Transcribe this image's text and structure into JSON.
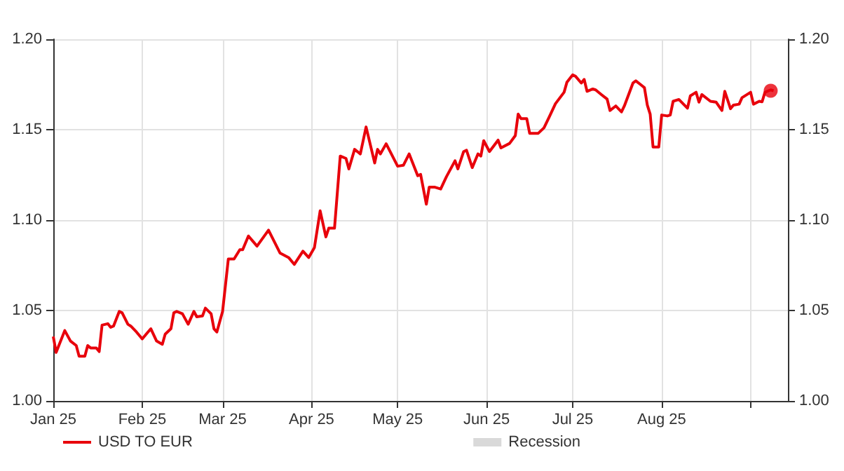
{
  "chart_data": {
    "type": "line",
    "legend": "bottom left",
    "grid": true,
    "line_style": "solid",
    "xlim": [
      "2025-01-01",
      "2025-09-14"
    ],
    "xticks": [
      {
        "value": "2025-01-01",
        "label": "Jan 25"
      },
      {
        "value": "2025-02-01",
        "label": "Feb 25"
      },
      {
        "value": "2025-03-01",
        "label": "Mar 25"
      },
      {
        "value": "2025-04-01",
        "label": "Apr 25"
      },
      {
        "value": "2025-05-01",
        "label": "May 25"
      },
      {
        "value": "2025-06-01",
        "label": "Jun 25"
      },
      {
        "value": "2025-07-01",
        "label": "Jul 25"
      },
      {
        "value": "2025-08-01",
        "label": "Aug 25"
      },
      {
        "value": "2025-09-01",
        "label": null
      }
    ],
    "ylim": [
      1.0,
      1.2
    ],
    "yticks": [
      {
        "value": 1.0,
        "label": "1.00"
      },
      1.05,
      {
        "value": 1.1,
        "label": "1.10"
      },
      1.15,
      {
        "value": 1.2,
        "label": "1.20"
      }
    ],
    "y2lim": [
      1.0,
      1.2
    ],
    "y2ticks": [
      {
        "value": 1.0,
        "label": "1.00"
      },
      1.05,
      {
        "value": 1.1,
        "label": "1.10"
      },
      1.15,
      {
        "value": 1.2,
        "label": "1.20"
      }
    ],
    "series": [
      {
        "name": "USD TO EUR",
        "color": "#e8000b",
        "marker": "none",
        "x": [
          "2025-01-01",
          "2025-01-02",
          "2025-01-05",
          "2025-01-07",
          "2025-01-09",
          "2025-01-10",
          "2025-01-12",
          "2025-01-13",
          "2025-01-14",
          "2025-01-16",
          "2025-01-17",
          "2025-01-18",
          "2025-01-20",
          "2025-01-21",
          "2025-01-22",
          "2025-01-24",
          "2025-01-25",
          "2025-01-27",
          "2025-01-28",
          "2025-01-30",
          "2025-02-01",
          "2025-02-03",
          "2025-02-04",
          "2025-02-06",
          "2025-02-08",
          "2025-02-09",
          "2025-02-11",
          "2025-02-12",
          "2025-02-13",
          "2025-02-15",
          "2025-02-17",
          "2025-02-19",
          "2025-02-20",
          "2025-02-22",
          "2025-02-23",
          "2025-02-25",
          "2025-02-26",
          "2025-02-27",
          "2025-03-01",
          "2025-03-03",
          "2025-03-05",
          "2025-03-07",
          "2025-03-08",
          "2025-03-10",
          "2025-03-13",
          "2025-03-17",
          "2025-03-21",
          "2025-03-24",
          "2025-03-26",
          "2025-03-29",
          "2025-03-31",
          "2025-04-02",
          "2025-04-04",
          "2025-04-06",
          "2025-04-07",
          "2025-04-09",
          "2025-04-11",
          "2025-04-13",
          "2025-04-14",
          "2025-04-16",
          "2025-04-18",
          "2025-04-20",
          "2025-04-23",
          "2025-04-24",
          "2025-04-25",
          "2025-04-27",
          "2025-05-01",
          "2025-05-03",
          "2025-05-05",
          "2025-05-08",
          "2025-05-09",
          "2025-05-11",
          "2025-05-12",
          "2025-05-14",
          "2025-05-16",
          "2025-05-18",
          "2025-05-21",
          "2025-05-22",
          "2025-05-24",
          "2025-05-25",
          "2025-05-27",
          "2025-05-29",
          "2025-05-30",
          "2025-05-31",
          "2025-06-02",
          "2025-06-05",
          "2025-06-06",
          "2025-06-09",
          "2025-06-11",
          "2025-06-12",
          "2025-06-13",
          "2025-06-15",
          "2025-06-16",
          "2025-06-19",
          "2025-06-21",
          "2025-06-23",
          "2025-06-25",
          "2025-06-28",
          "2025-06-29",
          "2025-07-01",
          "2025-07-02",
          "2025-07-04",
          "2025-07-05",
          "2025-07-06",
          "2025-07-08",
          "2025-07-09",
          "2025-07-11",
          "2025-07-13",
          "2025-07-14",
          "2025-07-16",
          "2025-07-18",
          "2025-07-19",
          "2025-07-22",
          "2025-07-23",
          "2025-07-25",
          "2025-07-26",
          "2025-07-27",
          "2025-07-28",
          "2025-07-29",
          "2025-07-31",
          "2025-08-01",
          "2025-08-03",
          "2025-08-04",
          "2025-08-05",
          "2025-08-07",
          "2025-08-10",
          "2025-08-11",
          "2025-08-13",
          "2025-08-14",
          "2025-08-15",
          "2025-08-18",
          "2025-08-20",
          "2025-08-22",
          "2025-08-23",
          "2025-08-25",
          "2025-08-26",
          "2025-08-28",
          "2025-08-29",
          "2025-09-01",
          "2025-09-02",
          "2025-09-04",
          "2025-09-05",
          "2025-09-06",
          "2025-09-08",
          "2025-09-09"
        ],
        "values": [
          1.0356,
          1.0268,
          1.0389,
          1.0331,
          1.0306,
          1.0247,
          1.0247,
          1.0306,
          1.0293,
          1.0293,
          1.0273,
          1.0419,
          1.0427,
          1.0407,
          1.0414,
          1.0495,
          1.0487,
          1.0424,
          1.0414,
          1.0381,
          1.0343,
          1.0381,
          1.0399,
          1.0331,
          1.0313,
          1.0369,
          1.0399,
          1.0487,
          1.0495,
          1.0482,
          1.0424,
          1.0495,
          1.0465,
          1.047,
          1.0513,
          1.0482,
          1.0399,
          1.0381,
          1.0495,
          1.0785,
          1.0785,
          1.0836,
          1.0836,
          1.0912,
          1.0856,
          1.0944,
          1.0818,
          1.0793,
          1.0755,
          1.0828,
          1.0793,
          1.0848,
          1.1051,
          1.0907,
          1.0955,
          1.0955,
          1.1354,
          1.1341,
          1.1283,
          1.1391,
          1.1366,
          1.1515,
          1.1316,
          1.1391,
          1.1366,
          1.1422,
          1.1298,
          1.1303,
          1.1366,
          1.1245,
          1.1253,
          1.1088,
          1.1182,
          1.1182,
          1.1172,
          1.124,
          1.1328,
          1.1283,
          1.1379,
          1.1386,
          1.129,
          1.1366,
          1.1354,
          1.1439,
          1.1379,
          1.1442,
          1.1399,
          1.1424,
          1.1467,
          1.1586,
          1.1561,
          1.1561,
          1.148,
          1.148,
          1.151,
          1.1576,
          1.1644,
          1.1707,
          1.1763,
          1.1803,
          1.1795,
          1.1758,
          1.1778,
          1.1712,
          1.1725,
          1.172,
          1.1694,
          1.1669,
          1.1606,
          1.1631,
          1.1598,
          1.1631,
          1.1758,
          1.177,
          1.1745,
          1.1732,
          1.1636,
          1.1586,
          1.1404,
          1.1404,
          1.1581,
          1.1576,
          1.1581,
          1.1657,
          1.1667,
          1.1619,
          1.1687,
          1.1707,
          1.1652,
          1.1694,
          1.1657,
          1.1652,
          1.1606,
          1.1712,
          1.1616,
          1.1636,
          1.1641,
          1.1677,
          1.1707,
          1.1641,
          1.1657,
          1.1654,
          1.1707,
          1.172,
          1.1715
        ]
      },
      {
        "type": "scatter",
        "color": "#e8000b",
        "marker": "circle",
        "x": [
          "2025-09-08"
        ],
        "values": [
          1.1715
        ]
      },
      {
        "name": "Recession",
        "type": "area",
        "color": "#d9d9d9"
      }
    ]
  }
}
